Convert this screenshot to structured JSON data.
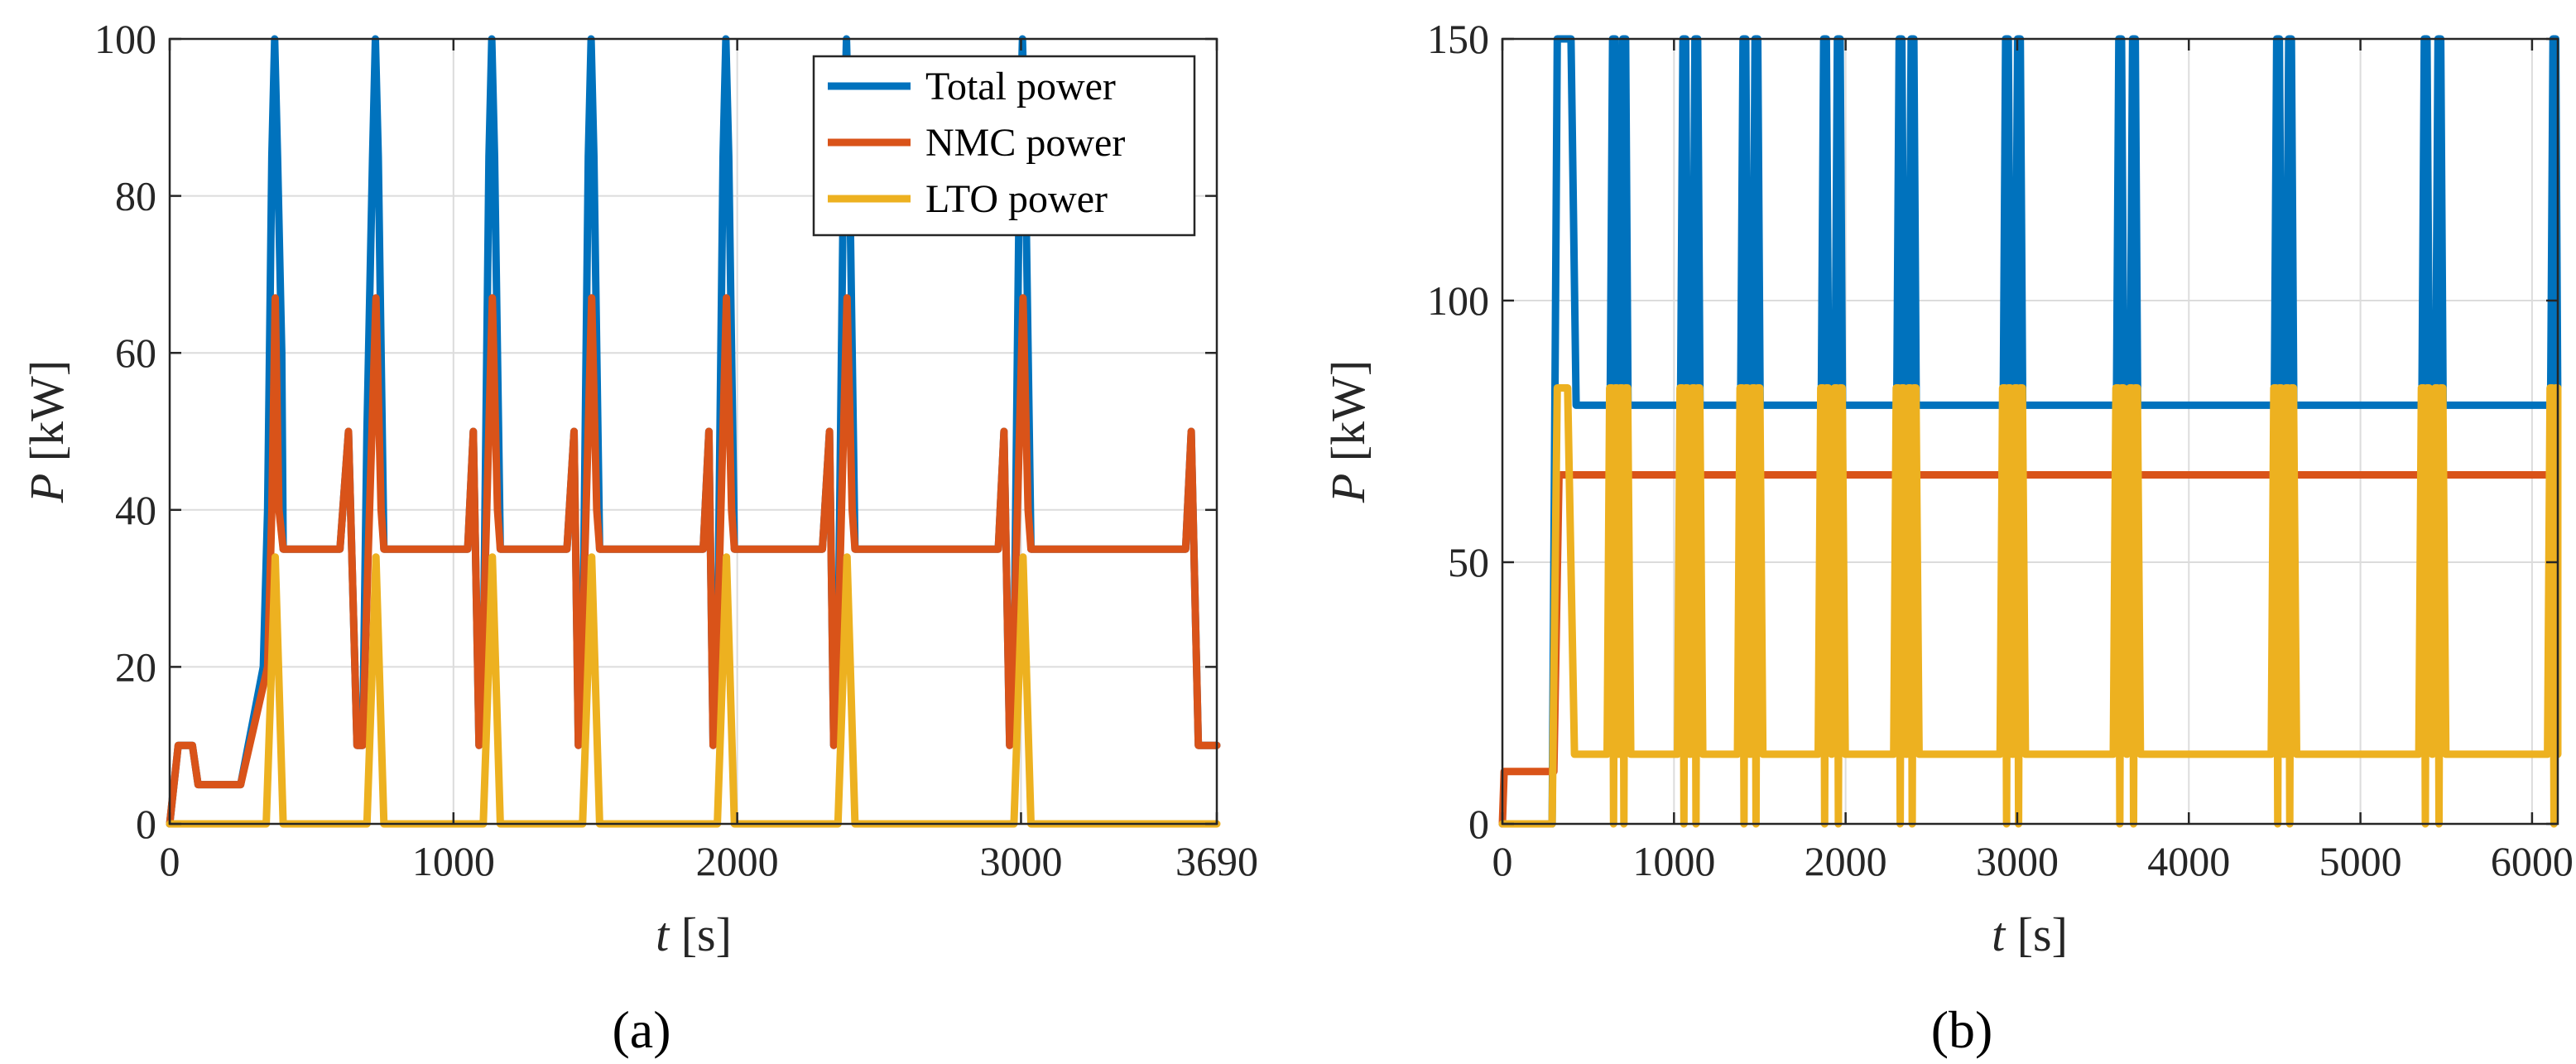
{
  "colors": {
    "total": "#0072BD",
    "nmc": "#D95319",
    "lto": "#EDB120"
  },
  "chart_data": [
    {
      "panel": "(a)",
      "type": "line",
      "xlabel_var": "t",
      "xlabel_unit": "[s]",
      "ylabel_var": "P",
      "ylabel_unit": "[kW]",
      "xlim": [
        0,
        3690
      ],
      "ylim": [
        0,
        100
      ],
      "xticks": [
        0,
        1000,
        2000,
        3000,
        3690
      ],
      "yticks": [
        0,
        20,
        40,
        60,
        80,
        100
      ],
      "xgrid": [
        0,
        1000,
        2000,
        3000
      ],
      "ygrid": [
        0,
        20,
        40,
        60,
        80,
        100
      ],
      "legend": {
        "position": "top-right",
        "entries": [
          "Total power",
          "NMC power",
          "LTO power"
        ]
      },
      "series": [
        {
          "name": "Total power",
          "color_key": "total",
          "points": [
            [
              0,
              0
            ],
            [
              30,
              10
            ],
            [
              80,
              10
            ],
            [
              100,
              5
            ],
            [
              250,
              5
            ],
            [
              330,
              20
            ],
            [
              345,
              40
            ],
            [
              360,
              85
            ],
            [
              370,
              100
            ],
            [
              380,
              85
            ],
            [
              395,
              60
            ],
            [
              400,
              35
            ],
            [
              600,
              35
            ],
            [
              630,
              50
            ],
            [
              660,
              10
            ],
            [
              680,
              10
            ],
            [
              695,
              50
            ],
            [
              715,
              85
            ],
            [
              725,
              100
            ],
            [
              735,
              85
            ],
            [
              755,
              35
            ],
            [
              1050,
              35
            ],
            [
              1070,
              50
            ],
            [
              1090,
              10
            ],
            [
              1105,
              20
            ],
            [
              1125,
              85
            ],
            [
              1135,
              100
            ],
            [
              1145,
              85
            ],
            [
              1165,
              35
            ],
            [
              1400,
              35
            ],
            [
              1425,
              50
            ],
            [
              1440,
              10
            ],
            [
              1455,
              20
            ],
            [
              1475,
              85
            ],
            [
              1485,
              100
            ],
            [
              1495,
              85
            ],
            [
              1515,
              35
            ],
            [
              1880,
              35
            ],
            [
              1900,
              50
            ],
            [
              1915,
              10
            ],
            [
              1930,
              20
            ],
            [
              1950,
              85
            ],
            [
              1960,
              100
            ],
            [
              1970,
              85
            ],
            [
              1990,
              35
            ],
            [
              2300,
              35
            ],
            [
              2325,
              50
            ],
            [
              2340,
              10
            ],
            [
              2355,
              20
            ],
            [
              2375,
              85
            ],
            [
              2385,
              100
            ],
            [
              2395,
              85
            ],
            [
              2415,
              35
            ],
            [
              2920,
              35
            ],
            [
              2940,
              50
            ],
            [
              2960,
              10
            ],
            [
              2975,
              20
            ],
            [
              2995,
              85
            ],
            [
              3005,
              100
            ],
            [
              3015,
              85
            ],
            [
              3035,
              35
            ],
            [
              3580,
              35
            ],
            [
              3600,
              50
            ],
            [
              3625,
              10
            ],
            [
              3690,
              10
            ]
          ]
        },
        {
          "name": "NMC power",
          "color_key": "nmc",
          "points": [
            [
              0,
              0
            ],
            [
              30,
              10
            ],
            [
              80,
              10
            ],
            [
              100,
              5
            ],
            [
              250,
              5
            ],
            [
              345,
              20
            ],
            [
              360,
              40
            ],
            [
              372,
              67
            ],
            [
              385,
              40
            ],
            [
              400,
              35
            ],
            [
              600,
              35
            ],
            [
              630,
              50
            ],
            [
              660,
              10
            ],
            [
              680,
              10
            ],
            [
              700,
              35
            ],
            [
              727,
              67
            ],
            [
              745,
              40
            ],
            [
              755,
              35
            ],
            [
              1050,
              35
            ],
            [
              1070,
              50
            ],
            [
              1090,
              10
            ],
            [
              1110,
              30
            ],
            [
              1137,
              67
            ],
            [
              1155,
              40
            ],
            [
              1165,
              35
            ],
            [
              1400,
              35
            ],
            [
              1425,
              50
            ],
            [
              1440,
              10
            ],
            [
              1460,
              30
            ],
            [
              1487,
              67
            ],
            [
              1505,
              40
            ],
            [
              1515,
              35
            ],
            [
              1880,
              35
            ],
            [
              1900,
              50
            ],
            [
              1915,
              10
            ],
            [
              1935,
              30
            ],
            [
              1962,
              67
            ],
            [
              1980,
              40
            ],
            [
              1990,
              35
            ],
            [
              2300,
              35
            ],
            [
              2325,
              50
            ],
            [
              2340,
              10
            ],
            [
              2360,
              30
            ],
            [
              2387,
              67
            ],
            [
              2405,
              40
            ],
            [
              2415,
              35
            ],
            [
              2920,
              35
            ],
            [
              2940,
              50
            ],
            [
              2960,
              10
            ],
            [
              2980,
              30
            ],
            [
              3007,
              67
            ],
            [
              3025,
              40
            ],
            [
              3035,
              35
            ],
            [
              3580,
              35
            ],
            [
              3600,
              50
            ],
            [
              3625,
              10
            ],
            [
              3690,
              10
            ]
          ]
        },
        {
          "name": "LTO power",
          "color_key": "lto",
          "points": [
            [
              0,
              0
            ],
            [
              340,
              0
            ],
            [
              372,
              34
            ],
            [
              400,
              0
            ],
            [
              695,
              0
            ],
            [
              727,
              34
            ],
            [
              755,
              0
            ],
            [
              1105,
              0
            ],
            [
              1137,
              34
            ],
            [
              1165,
              0
            ],
            [
              1455,
              0
            ],
            [
              1487,
              34
            ],
            [
              1515,
              0
            ],
            [
              1930,
              0
            ],
            [
              1962,
              34
            ],
            [
              1990,
              0
            ],
            [
              2355,
              0
            ],
            [
              2387,
              34
            ],
            [
              2415,
              0
            ],
            [
              2975,
              0
            ],
            [
              3007,
              34
            ],
            [
              3035,
              0
            ],
            [
              3690,
              0
            ]
          ]
        }
      ]
    },
    {
      "panel": "(b)",
      "type": "line",
      "xlabel_var": "t",
      "xlabel_unit": "[s]",
      "ylabel_var": "P",
      "ylabel_unit": "[kW]",
      "xlim": [
        0,
        6150
      ],
      "ylim": [
        0,
        150
      ],
      "xticks": [
        0,
        1000,
        2000,
        3000,
        4000,
        5000,
        6000
      ],
      "yticks": [
        0,
        50,
        100,
        150
      ],
      "xgrid": [
        0,
        1000,
        2000,
        3000,
        4000,
        5000,
        6000
      ],
      "ygrid": [
        0,
        50,
        100,
        150
      ],
      "legend": null,
      "base_levels": {
        "total": 80,
        "nmc": 66.7,
        "lto": 13.3,
        "total_peak": 150,
        "lto_peak": 83.3
      },
      "start": {
        "nmc_initial": 10,
        "rise_time": 300,
        "plateau_end": 400
      },
      "spike_times": [
        650,
        710,
        1060,
        1130,
        1410,
        1480,
        1880,
        1960,
        2320,
        2390,
        2940,
        3010,
        3600,
        3680,
        4520,
        4590,
        5380,
        5460,
        6130
      ]
    }
  ],
  "captions": [
    "(a)",
    "(b)"
  ]
}
